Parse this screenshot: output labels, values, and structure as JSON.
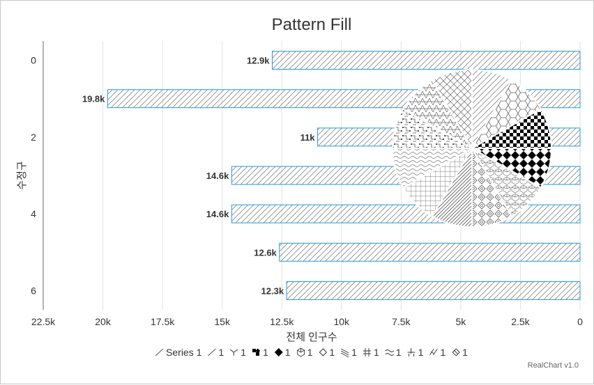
{
  "chart_data": {
    "type": "bar",
    "orientation": "horizontal",
    "title": "Pattern Fill",
    "xlabel": "전체 인구수",
    "ylabel": "수정구",
    "x_reversed": true,
    "xlim": [
      0,
      22500
    ],
    "x_ticks": [
      "22.5k",
      "20k",
      "17.5k",
      "15k",
      "12.5k",
      "10k",
      "7.5k",
      "5k",
      "2.5k",
      "0"
    ],
    "y_ticks": [
      "0",
      "2",
      "4",
      "6"
    ],
    "grid": true,
    "bar_color": "#1e9be0",
    "series": [
      {
        "name": "Series 1",
        "values": [
          12900,
          19800,
          11000,
          14600,
          14600,
          12600,
          12300
        ],
        "labels": [
          "12.9k",
          "19.8k",
          "11k",
          "14.6k",
          "14.6k",
          "12.6k",
          "12.3k"
        ]
      }
    ],
    "pie": {
      "type": "pie",
      "slices": [
        {
          "name": "1",
          "value": 1,
          "pattern": "diagonal"
        },
        {
          "name": "1",
          "value": 1,
          "pattern": "hexagon"
        },
        {
          "name": "1",
          "value": 1,
          "pattern": "checker"
        },
        {
          "name": "1",
          "value": 1,
          "pattern": "diamond-solid"
        },
        {
          "name": "1",
          "value": 1,
          "pattern": "cube"
        },
        {
          "name": "1",
          "value": 1,
          "pattern": "diamond-outline"
        },
        {
          "name": "1",
          "value": 1,
          "pattern": "diagonal-dense"
        },
        {
          "name": "1",
          "value": 1,
          "pattern": "grid"
        },
        {
          "name": "1",
          "value": 1,
          "pattern": "wave"
        },
        {
          "name": "1",
          "value": 1,
          "pattern": "circuit"
        },
        {
          "name": "1",
          "value": 1,
          "pattern": "scale"
        },
        {
          "name": "1",
          "value": 1,
          "pattern": "diamond-lattice"
        }
      ]
    },
    "legend": {
      "placement": "bottom",
      "items": [
        {
          "label": "Series 1",
          "icon": "diagonal-line-icon"
        },
        {
          "label": "1",
          "icon": "diagonal-line-icon"
        },
        {
          "label": "1",
          "icon": "branch-icon"
        },
        {
          "label": "1",
          "icon": "checker-icon"
        },
        {
          "label": "1",
          "icon": "diamond-solid-icon"
        },
        {
          "label": "1",
          "icon": "cube-icon"
        },
        {
          "label": "1",
          "icon": "diamond-outline-icon"
        },
        {
          "label": "1",
          "icon": "dense-lines-icon"
        },
        {
          "label": "1",
          "icon": "hash-icon"
        },
        {
          "label": "1",
          "icon": "wave-icon"
        },
        {
          "label": "1",
          "icon": "circuit-icon"
        },
        {
          "label": "1",
          "icon": "scale-icon"
        },
        {
          "label": "1",
          "icon": "diamond-lattice-icon"
        }
      ]
    }
  },
  "credit": "RealChart v1.0"
}
